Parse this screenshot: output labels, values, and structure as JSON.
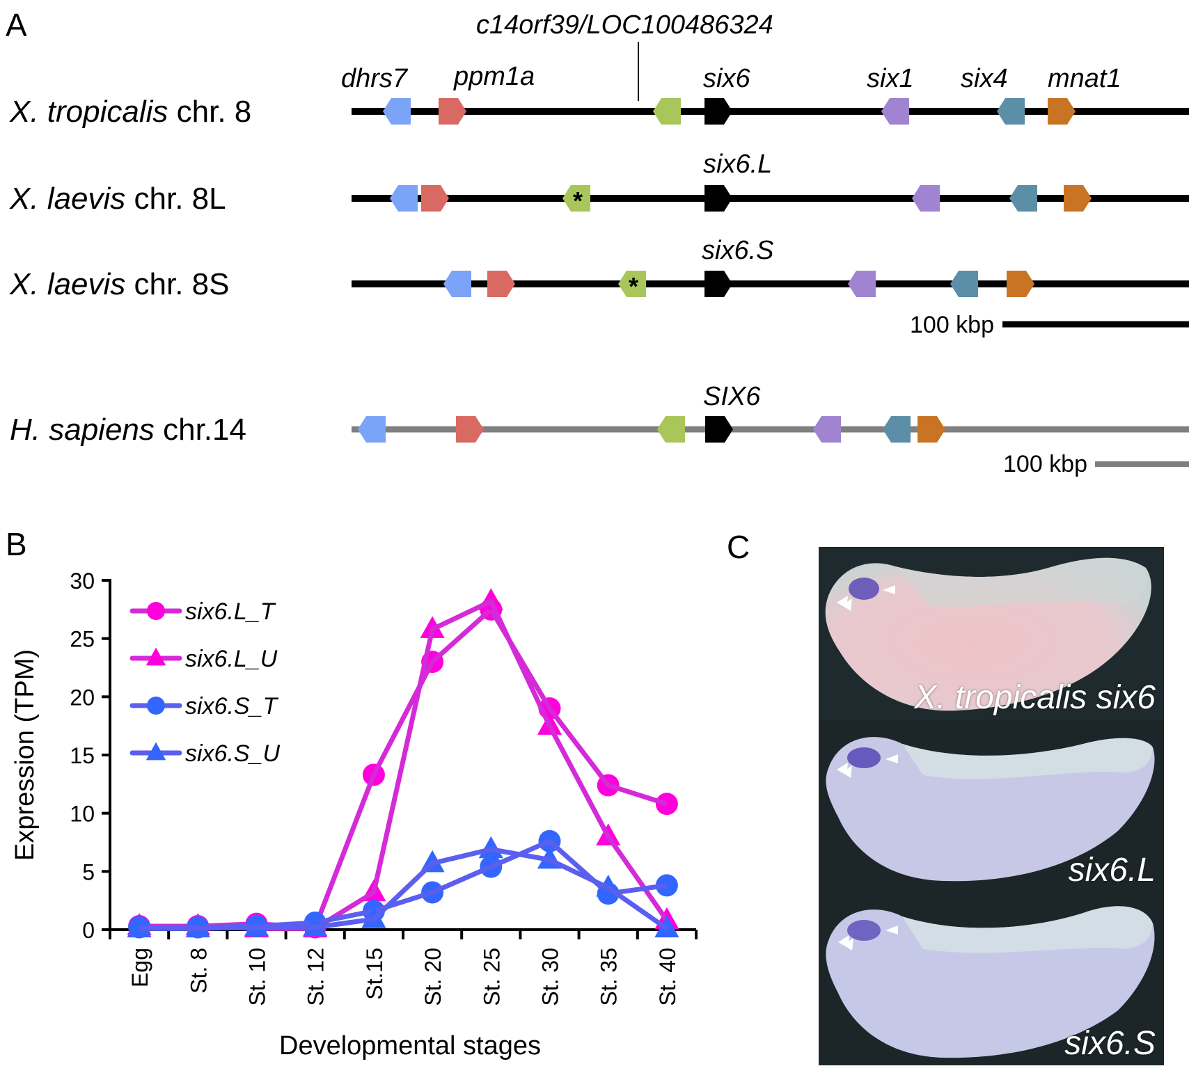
{
  "panels": {
    "a_label": "A",
    "b_label": "B",
    "c_label": "C"
  },
  "synteny": {
    "gene_colors": {
      "dhrs7": "#7ba3f7",
      "ppm1a": "#d96a63",
      "c14orf39": "#a9c65a",
      "six6": "#000000",
      "six1": "#a084d2",
      "six4": "#5c8ea8",
      "mnat1": "#c87424"
    },
    "top_label": "c14orf39/LOC100486324",
    "asterisk": "*",
    "tracks": [
      {
        "species_italic": "X. tropicalis",
        "species_rest": " chr. 8",
        "line_color": "#000000",
        "labels": [
          "dhrs7",
          "ppm1a",
          "six6",
          "six1",
          "six4",
          "mnat1"
        ],
        "genes": [
          {
            "name": "dhrs7",
            "dir": "left"
          },
          {
            "name": "ppm1a",
            "dir": "right"
          },
          {
            "name": "c14orf39",
            "dir": "left",
            "asterisk": false
          },
          {
            "name": "six6",
            "dir": "right"
          },
          {
            "name": "six1",
            "dir": "left"
          },
          {
            "name": "six4",
            "dir": "left"
          },
          {
            "name": "mnat1",
            "dir": "right"
          }
        ]
      },
      {
        "species_italic": "X. laevis",
        "species_rest": " chr. 8L",
        "line_color": "#000000",
        "labels": [
          "six6.L"
        ],
        "genes": [
          {
            "name": "dhrs7",
            "dir": "left"
          },
          {
            "name": "ppm1a",
            "dir": "right"
          },
          {
            "name": "c14orf39",
            "dir": "left",
            "asterisk": true
          },
          {
            "name": "six6",
            "dir": "right"
          },
          {
            "name": "six1",
            "dir": "left"
          },
          {
            "name": "six4",
            "dir": "left"
          },
          {
            "name": "mnat1",
            "dir": "right"
          }
        ]
      },
      {
        "species_italic": "X. laevis",
        "species_rest": " chr. 8S",
        "line_color": "#000000",
        "labels": [
          "six6.S"
        ],
        "genes": [
          {
            "name": "dhrs7",
            "dir": "left"
          },
          {
            "name": "ppm1a",
            "dir": "right"
          },
          {
            "name": "c14orf39",
            "dir": "left",
            "asterisk": true
          },
          {
            "name": "six6",
            "dir": "right"
          },
          {
            "name": "six1",
            "dir": "left"
          },
          {
            "name": "six4",
            "dir": "left"
          },
          {
            "name": "mnat1",
            "dir": "right"
          }
        ]
      },
      {
        "species_italic": "H. sapiens",
        "species_rest": " chr.14",
        "line_color": "#808080",
        "labels": [
          "SIX6"
        ],
        "genes": [
          {
            "name": "dhrs7",
            "dir": "left"
          },
          {
            "name": "ppm1a",
            "dir": "right"
          },
          {
            "name": "c14orf39",
            "dir": "left",
            "asterisk": false
          },
          {
            "name": "six6",
            "dir": "right"
          },
          {
            "name": "six1",
            "dir": "left"
          },
          {
            "name": "six4",
            "dir": "left"
          },
          {
            "name": "mnat1",
            "dir": "right"
          }
        ]
      }
    ],
    "scale_bars": [
      {
        "label": "100 kbp",
        "color": "#000000"
      },
      {
        "label": "100 kbp",
        "color": "#808080"
      }
    ]
  },
  "chart_data": {
    "type": "line",
    "title": "",
    "xlabel": "Developmental stages",
    "ylabel": "Expression (TPM)",
    "categories": [
      "Egg",
      "St. 8",
      "St. 10",
      "St. 12",
      "St.15",
      "St. 20",
      "St. 25",
      "St. 30",
      "St. 35",
      "St. 40"
    ],
    "ylim": [
      0,
      30
    ],
    "yticks": [
      0,
      5,
      10,
      15,
      20,
      25,
      30
    ],
    "grid": false,
    "legend_position": "top-left",
    "series": [
      {
        "name": "six6.L_T",
        "marker": "circle",
        "marker_color": "#ff00dd",
        "line_color": "#d42ad8",
        "values": [
          0.3,
          0.3,
          0.5,
          0.2,
          13.3,
          23.0,
          27.5,
          19.0,
          12.4,
          10.8
        ]
      },
      {
        "name": "six6.L_U",
        "marker": "triangle",
        "marker_color": "#ff00dd",
        "line_color": "#d42ad8",
        "values": [
          0.3,
          0.3,
          0.1,
          0.1,
          3.2,
          25.8,
          28.2,
          17.5,
          8.0,
          0.8
        ]
      },
      {
        "name": "six6.S_T",
        "marker": "circle",
        "marker_color": "#3366ff",
        "line_color": "#5a5ff0",
        "values": [
          0.2,
          0.2,
          0.3,
          0.6,
          1.6,
          3.2,
          5.4,
          7.6,
          3.1,
          3.8
        ]
      },
      {
        "name": "six6.S_U",
        "marker": "triangle",
        "marker_color": "#3366ff",
        "line_color": "#5a5ff0",
        "values": [
          0.1,
          0.1,
          0.2,
          0.2,
          0.9,
          5.7,
          6.9,
          6.0,
          3.6,
          0.1
        ]
      }
    ]
  },
  "photos": {
    "captions": [
      "X. tropicalis six6",
      "six6.L",
      "six6.S"
    ]
  }
}
